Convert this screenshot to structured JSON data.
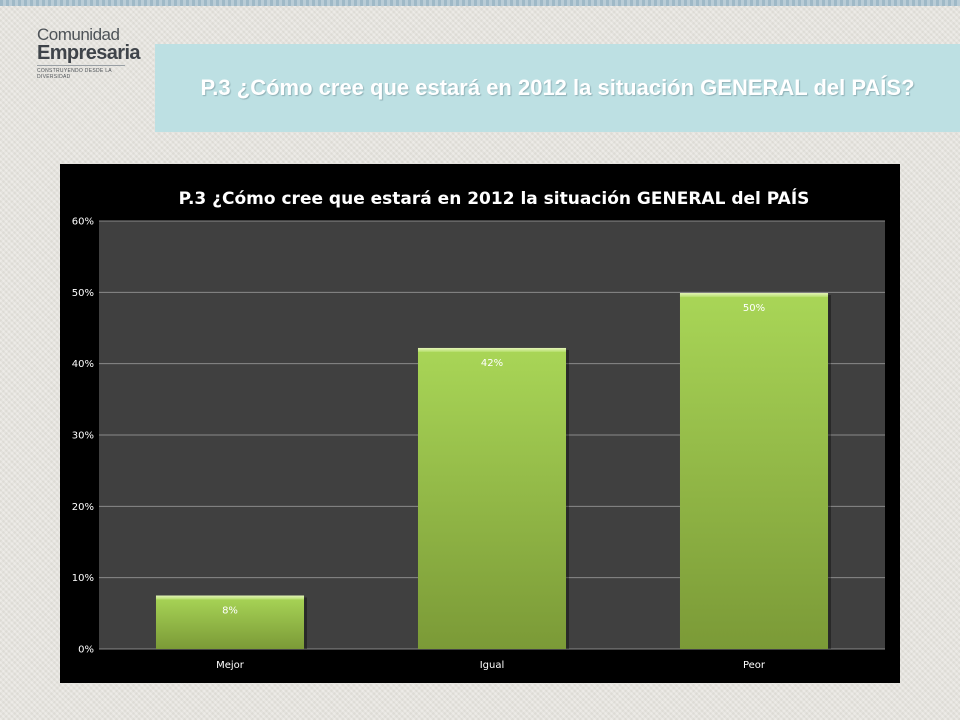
{
  "logo": {
    "line1": "Comunidad",
    "line2": "Empresaria",
    "tagline": "CONSTRUYENDO DESDE LA DIVERSIDAD"
  },
  "slide_title": "P.3 ¿Cómo cree que estará en 2012 la situación GENERAL del PAÍS?",
  "chart_data": {
    "type": "bar",
    "title": "P.3 ¿Cómo cree que estará en 2012 la situación GENERAL del PAÍS",
    "categories": [
      "Mejor",
      "Igual",
      "Peor"
    ],
    "values": [
      7.5,
      42.2,
      49.9
    ],
    "data_labels": [
      "8%",
      "42%",
      "50%"
    ],
    "xlabel": "",
    "ylabel": "",
    "ylim": [
      0,
      60
    ],
    "yticks": [
      0,
      10,
      20,
      30,
      40,
      50,
      60
    ],
    "ytick_labels": [
      "0%",
      "10%",
      "20%",
      "30%",
      "40%",
      "50%",
      "60%"
    ],
    "grid": true,
    "legend": "none",
    "colors": {
      "bar_light": "#a9d657",
      "bar_dark": "#7b9a37",
      "plot_bg": "#404040",
      "frame_bg": "#000000",
      "grid": "#8a8a8a"
    }
  }
}
